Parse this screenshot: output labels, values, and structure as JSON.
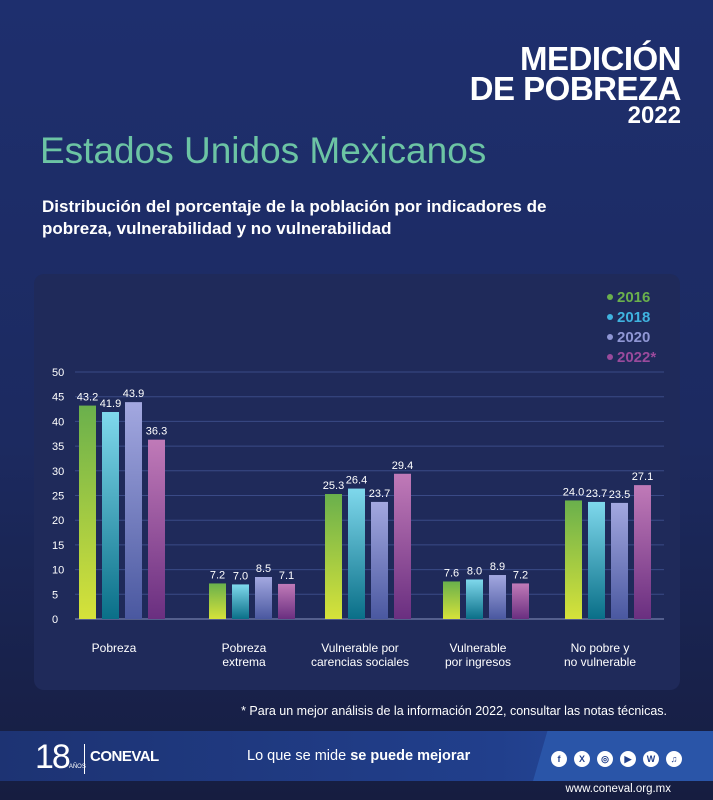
{
  "brand": {
    "line1": "MEDICIÓN",
    "line2": "DE POBREZA",
    "line3": "2022"
  },
  "title": "Estados Unidos Mexicanos",
  "subtitle": "Distribución del porcentaje de la población por indicadores de pobreza, vulnerabilidad y no vulnerabilidad",
  "note": "* Para un mejor análisis de la información 2022, consultar las notas técnicas.",
  "footer": {
    "years": "18",
    "years_label": "AÑOS",
    "logo": "CONEVAL",
    "slogan_plain": "Lo que se mide ",
    "slogan_bold": "se puede mejorar",
    "url": "www.coneval.org.mx",
    "social": [
      {
        "icon": "facebook-icon",
        "glyph": "f"
      },
      {
        "icon": "x-icon",
        "glyph": "X"
      },
      {
        "icon": "instagram-icon",
        "glyph": "◎"
      },
      {
        "icon": "youtube-icon",
        "glyph": "▶"
      },
      {
        "icon": "wordpress-icon",
        "glyph": "W"
      },
      {
        "icon": "podcast-icon",
        "glyph": "♫"
      }
    ]
  },
  "chart_data": {
    "type": "bar",
    "categories": [
      "Pobreza",
      "Pobreza\nextrema",
      "Vulnerable por\ncarencias sociales",
      "Vulnerable\npor ingresos",
      "No pobre y\nno vulnerable"
    ],
    "series": [
      {
        "name": "2016",
        "values": [
          43.2,
          7.2,
          25.3,
          7.6,
          24.0
        ],
        "color": "#6ab04c"
      },
      {
        "name": "2018",
        "values": [
          41.9,
          7.0,
          26.4,
          8.0,
          23.7
        ],
        "color": "#3fb3e0"
      },
      {
        "name": "2020",
        "values": [
          43.9,
          8.5,
          23.7,
          8.9,
          23.5
        ],
        "color": "#8f96d4"
      },
      {
        "name": "2022*",
        "values": [
          36.3,
          7.1,
          29.4,
          7.2,
          27.1
        ],
        "color": "#9a4a9c"
      }
    ],
    "ylim": [
      0,
      50
    ],
    "yticks": [
      0,
      5,
      10,
      15,
      20,
      25,
      30,
      35,
      40,
      45,
      50
    ],
    "legend": "top-right",
    "grid": true
  }
}
